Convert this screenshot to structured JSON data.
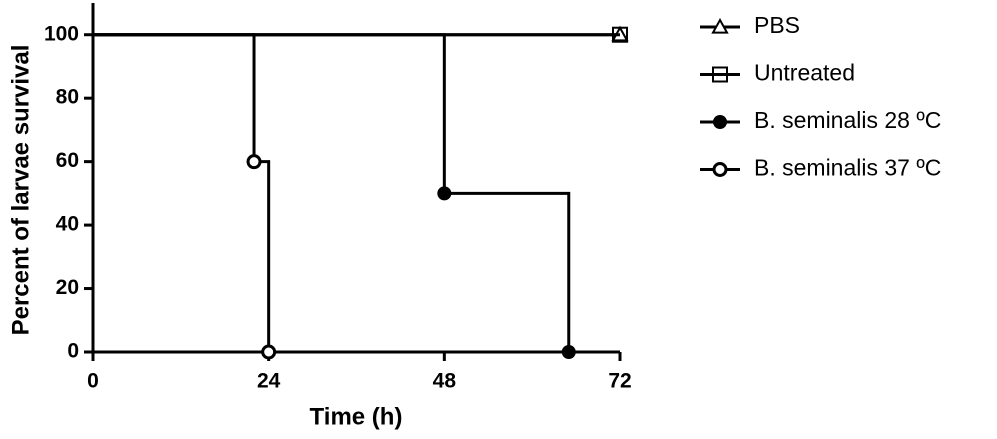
{
  "chart_data": {
    "type": "survival",
    "x_label": "Time (h)",
    "y_label": "Percent of larvae survival",
    "xlim": [
      0,
      72
    ],
    "xticks": [
      0,
      24,
      48,
      72
    ],
    "ylim": [
      0,
      110
    ],
    "yticks": [
      0,
      20,
      40,
      60,
      80,
      100
    ],
    "series": [
      {
        "name": "PBS",
        "color": "#000000",
        "marker": "triangle",
        "x": [
          0,
          72
        ],
        "values": [
          100,
          100
        ]
      },
      {
        "name": "Untreated",
        "color": "#000000",
        "marker": "square",
        "x": [
          0,
          72
        ],
        "values": [
          100,
          100
        ]
      },
      {
        "name": "B. seminalis 28 ºC",
        "color": "#000000",
        "marker": "filled-circle",
        "x": [
          0,
          48,
          65
        ],
        "values": [
          100,
          50,
          0
        ]
      },
      {
        "name": "B. seminalis 37 ºC",
        "color": "#000000",
        "marker": "open-circle",
        "x": [
          0,
          22,
          24
        ],
        "values": [
          100,
          60,
          0
        ]
      }
    ]
  }
}
